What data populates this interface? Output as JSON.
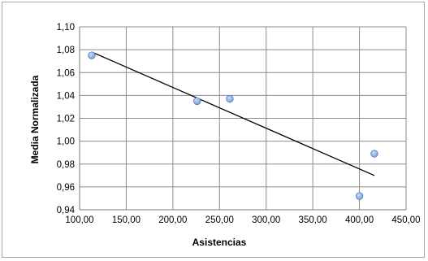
{
  "chart_data": {
    "type": "scatter",
    "xlabel": "Asistencias",
    "ylabel": "Media Normalizada",
    "xlim": [
      100,
      450
    ],
    "ylim": [
      0.94,
      1.1
    ],
    "x_ticks": [
      100,
      150,
      200,
      250,
      300,
      350,
      400,
      450
    ],
    "y_ticks": [
      0.94,
      0.96,
      0.98,
      1.0,
      1.02,
      1.04,
      1.06,
      1.08,
      1.1
    ],
    "x_tick_labels": [
      "100,00",
      "150,00",
      "200,00",
      "250,00",
      "300,00",
      "350,00",
      "400,00",
      "450,00"
    ],
    "y_tick_labels": [
      "0,94",
      "0,96",
      "0,98",
      "1,00",
      "1,02",
      "1,04",
      "1,06",
      "1,08",
      "1,10"
    ],
    "grid": true,
    "legend": "none",
    "series": [
      {
        "points": [
          {
            "x": 113,
            "y": 1.075
          },
          {
            "x": 226,
            "y": 1.035
          },
          {
            "x": 261,
            "y": 1.037
          },
          {
            "x": 400,
            "y": 0.952
          },
          {
            "x": 416,
            "y": 0.989
          }
        ],
        "color": "#7a9fd8"
      }
    ],
    "trendline": {
      "type": "linear",
      "from": {
        "x": 113,
        "y": 1.078
      },
      "to": {
        "x": 416,
        "y": 0.97
      },
      "color": "#000000"
    }
  }
}
